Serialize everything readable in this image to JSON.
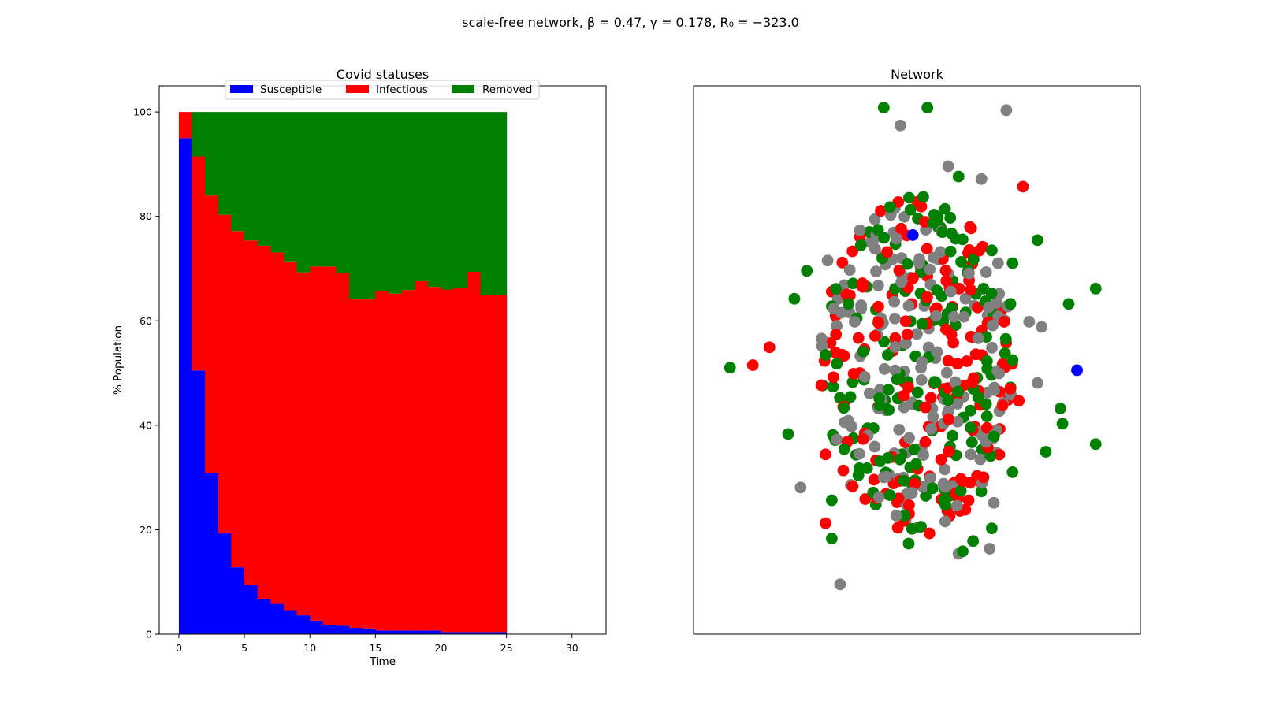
{
  "figure": {
    "suptitle": "scale-free network, β = 0.47, γ = 0.178, R₀ = −323.0"
  },
  "chart_data": [
    {
      "type": "area",
      "title": "Covid statuses",
      "xlabel": "Time",
      "ylabel": "% Population",
      "xlim": [
        -1.5,
        32.6
      ],
      "ylim": [
        0,
        105
      ],
      "xticks": [
        "0",
        "5",
        "10",
        "15",
        "20",
        "25",
        "30"
      ],
      "yticks": [
        "0",
        "20",
        "40",
        "60",
        "80",
        "100"
      ],
      "grid": false,
      "legend_position": "top-center",
      "step_style": "post",
      "x": [
        0,
        1,
        2,
        3,
        4,
        5,
        6,
        7,
        8,
        9,
        10,
        11,
        12,
        13,
        14,
        15,
        16,
        17,
        18,
        19,
        20,
        21,
        22,
        23,
        24
      ],
      "series": [
        {
          "name": "Susceptible",
          "color": "#0000ff",
          "values": [
            95.0,
            50.5,
            30.8,
            19.3,
            12.8,
            9.4,
            6.8,
            5.8,
            4.6,
            3.6,
            2.6,
            1.8,
            1.6,
            1.2,
            1.1,
            0.7,
            0.7,
            0.7,
            0.7,
            0.7,
            0.4,
            0.4,
            0.4,
            0.4,
            0.4
          ]
        },
        {
          "name": "Infectious",
          "color": "#ff0000",
          "values": [
            5.0,
            41.0,
            53.2,
            61.0,
            64.4,
            66.0,
            67.6,
            67.3,
            66.8,
            65.7,
            67.8,
            68.6,
            67.6,
            62.9,
            63.0,
            65.0,
            64.5,
            65.2,
            66.9,
            65.8,
            65.6,
            65.9,
            69.0,
            64.6,
            64.6
          ]
        },
        {
          "name": "Removed",
          "color": "#008000",
          "values": [
            0.0,
            8.5,
            16.0,
            19.7,
            22.8,
            24.6,
            25.6,
            26.9,
            28.6,
            30.7,
            29.6,
            29.6,
            30.8,
            35.9,
            35.9,
            34.3,
            34.8,
            34.1,
            32.4,
            33.5,
            34.0,
            33.7,
            30.6,
            35.0,
            35.0
          ]
        }
      ]
    },
    {
      "type": "scatter",
      "title": "Network",
      "axes_visible": false,
      "node_colors": {
        "susceptible": "#0000ff",
        "infectious": "#ff0000",
        "removed": "#008000",
        "grey": "#808080"
      },
      "note_points": "node layout positions (x, y in layout units -1..1), color key",
      "points": [
        [
          -0.16,
          0.99,
          "g"
        ],
        [
          0.05,
          0.99,
          "g"
        ],
        [
          -0.08,
          0.92,
          "n"
        ],
        [
          0.43,
          0.98,
          "n"
        ],
        [
          0.51,
          0.68,
          "r"
        ],
        [
          0.2,
          0.72,
          "g"
        ],
        [
          0.31,
          0.71,
          "n"
        ],
        [
          -0.27,
          0.45,
          "g"
        ],
        [
          -0.43,
          0.39,
          "n"
        ],
        [
          -0.53,
          0.35,
          "g"
        ],
        [
          -0.59,
          0.24,
          "g"
        ],
        [
          0.36,
          0.43,
          "g"
        ],
        [
          0.39,
          0.38,
          "n"
        ],
        [
          0.46,
          0.38,
          "g"
        ],
        [
          0.58,
          0.47,
          "g"
        ],
        [
          0.86,
          0.28,
          "g"
        ],
        [
          0.73,
          0.22,
          "g"
        ],
        [
          0.54,
          0.15,
          "n"
        ],
        [
          0.46,
          0.0,
          "g"
        ],
        [
          -0.71,
          0.05,
          "r"
        ],
        [
          -0.44,
          0.02,
          "g"
        ],
        [
          -0.9,
          -0.03,
          "g"
        ],
        [
          -0.79,
          -0.02,
          "r"
        ],
        [
          0.77,
          -0.04,
          "b"
        ],
        [
          0.58,
          -0.09,
          "n"
        ],
        [
          0.49,
          -0.16,
          "r"
        ],
        [
          0.69,
          -0.19,
          "g"
        ],
        [
          0.7,
          -0.25,
          "g"
        ],
        [
          0.86,
          -0.33,
          "g"
        ],
        [
          -0.62,
          -0.29,
          "g"
        ],
        [
          -0.44,
          -0.37,
          "r"
        ],
        [
          -0.56,
          -0.5,
          "n"
        ],
        [
          -0.41,
          -0.55,
          "g"
        ],
        [
          0.46,
          -0.44,
          "g"
        ],
        [
          0.37,
          -0.56,
          "n"
        ],
        [
          0.36,
          -0.66,
          "g"
        ],
        [
          0.27,
          -0.71,
          "g"
        ],
        [
          0.35,
          -0.74,
          "n"
        ],
        [
          -0.44,
          -0.64,
          "r"
        ],
        [
          -0.41,
          -0.7,
          "g"
        ],
        [
          -0.06,
          -0.61,
          "g"
        ],
        [
          0.06,
          -0.68,
          "r"
        ],
        [
          -0.04,
          -0.72,
          "g"
        ],
        [
          0.2,
          -0.76,
          "n"
        ],
        [
          0.22,
          -0.75,
          "g"
        ],
        [
          -0.37,
          -0.88,
          "n"
        ],
        [
          0.13,
          -0.55,
          "g"
        ],
        [
          -0.1,
          -0.61,
          "n"
        ],
        [
          -0.13,
          -0.53,
          "g"
        ],
        [
          0.62,
          -0.36,
          "g"
        ],
        [
          0.32,
          -0.46,
          "r"
        ],
        [
          -0.16,
          -0.46,
          "n"
        ],
        [
          -0.09,
          0.62,
          "r"
        ],
        [
          0.03,
          0.64,
          "g"
        ],
        [
          -0.02,
          0.49,
          "b"
        ],
        [
          0.15,
          0.76,
          "n"
        ],
        [
          -0.13,
          0.6,
          "g"
        ],
        [
          0.45,
          0.22,
          "g"
        ],
        [
          0.6,
          0.13,
          "n"
        ],
        [
          0.25,
          0.34,
          "n"
        ],
        [
          0.32,
          0.28,
          "g"
        ],
        [
          -0.3,
          0.15,
          "n"
        ],
        [
          -0.33,
          0.22,
          "g"
        ],
        [
          -0.39,
          0.1,
          "r"
        ],
        [
          0.42,
          0.15,
          "r"
        ],
        [
          0.37,
          -0.3,
          "g"
        ],
        [
          -0.35,
          -0.35,
          "g"
        ]
      ]
    }
  ],
  "colors": {
    "axes_edge": "#000000",
    "background": "#ffffff"
  }
}
